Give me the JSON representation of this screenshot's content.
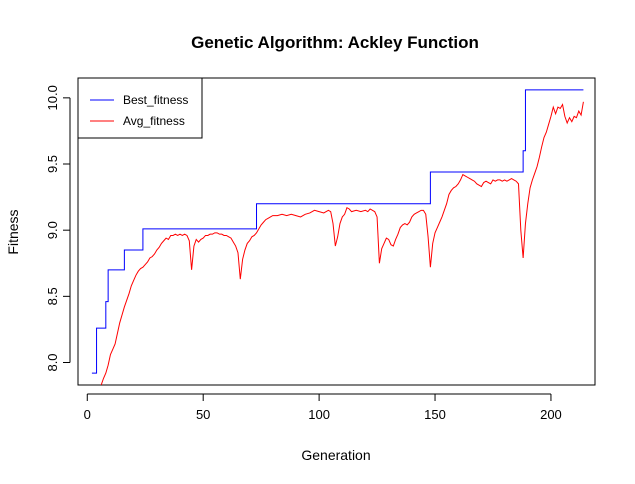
{
  "chart_data": {
    "type": "line",
    "title": "Genetic Algorithm: Ackley Function",
    "xlabel": "Generation",
    "ylabel": "Fitness",
    "xlim": [
      -4,
      219
    ],
    "ylim": [
      7.83,
      10.15
    ],
    "x_ticks": [
      0,
      50,
      100,
      150,
      200
    ],
    "y_ticks": [
      8.0,
      8.5,
      9.0,
      9.5,
      10.0
    ],
    "x_tick_labels": [
      "0",
      "50",
      "100",
      "150",
      "200"
    ],
    "y_tick_labels": [
      "8.0",
      "8.5",
      "9.0",
      "9.5",
      "10.0"
    ],
    "grid": false,
    "legend_position": "top-left",
    "series": [
      {
        "name": "Best_fitness",
        "color": "#0000ff",
        "step": true,
        "points": [
          [
            2,
            7.92
          ],
          [
            4,
            7.92
          ],
          [
            4,
            8.26
          ],
          [
            8,
            8.26
          ],
          [
            8,
            8.46
          ],
          [
            9,
            8.46
          ],
          [
            9,
            8.7
          ],
          [
            16,
            8.7
          ],
          [
            16,
            8.85
          ],
          [
            24,
            8.85
          ],
          [
            24,
            9.01
          ],
          [
            73,
            9.01
          ],
          [
            73,
            9.2
          ],
          [
            148,
            9.2
          ],
          [
            148,
            9.44
          ],
          [
            188,
            9.44
          ],
          [
            188,
            9.6
          ],
          [
            189,
            9.6
          ],
          [
            189,
            10.06
          ],
          [
            214,
            10.06
          ]
        ]
      },
      {
        "name": "Avg_fitness",
        "color": "#ff0000",
        "step": false,
        "points": [
          [
            6,
            7.83
          ],
          [
            7,
            7.88
          ],
          [
            8,
            7.92
          ],
          [
            9,
            7.98
          ],
          [
            10,
            8.06
          ],
          [
            11,
            8.1
          ],
          [
            12,
            8.14
          ],
          [
            13,
            8.22
          ],
          [
            14,
            8.3
          ],
          [
            15,
            8.36
          ],
          [
            16,
            8.42
          ],
          [
            17,
            8.47
          ],
          [
            18,
            8.52
          ],
          [
            19,
            8.58
          ],
          [
            20,
            8.62
          ],
          [
            21,
            8.66
          ],
          [
            22,
            8.69
          ],
          [
            23,
            8.71
          ],
          [
            24,
            8.72
          ],
          [
            25,
            8.74
          ],
          [
            26,
            8.76
          ],
          [
            27,
            8.79
          ],
          [
            28,
            8.8
          ],
          [
            29,
            8.82
          ],
          [
            30,
            8.85
          ],
          [
            31,
            8.87
          ],
          [
            32,
            8.9
          ],
          [
            33,
            8.92
          ],
          [
            34,
            8.94
          ],
          [
            35,
            8.93
          ],
          [
            36,
            8.96
          ],
          [
            37,
            8.96
          ],
          [
            38,
            8.97
          ],
          [
            39,
            8.96
          ],
          [
            40,
            8.97
          ],
          [
            41,
            8.96
          ],
          [
            42,
            8.97
          ],
          [
            43,
            8.96
          ],
          [
            44,
            8.92
          ],
          [
            45,
            8.7
          ],
          [
            46,
            8.88
          ],
          [
            47,
            8.93
          ],
          [
            48,
            8.91
          ],
          [
            49,
            8.93
          ],
          [
            50,
            8.94
          ],
          [
            51,
            8.96
          ],
          [
            52,
            8.96
          ],
          [
            53,
            8.97
          ],
          [
            54,
            8.97
          ],
          [
            55,
            8.98
          ],
          [
            56,
            8.98
          ],
          [
            57,
            8.97
          ],
          [
            58,
            8.97
          ],
          [
            59,
            8.96
          ],
          [
            60,
            8.96
          ],
          [
            61,
            8.95
          ],
          [
            62,
            8.94
          ],
          [
            63,
            8.91
          ],
          [
            64,
            8.88
          ],
          [
            65,
            8.83
          ],
          [
            66,
            8.63
          ],
          [
            67,
            8.78
          ],
          [
            68,
            8.85
          ],
          [
            69,
            8.9
          ],
          [
            70,
            8.92
          ],
          [
            71,
            8.95
          ],
          [
            72,
            8.96
          ],
          [
            73,
            8.98
          ],
          [
            74,
            9.01
          ],
          [
            75,
            9.04
          ],
          [
            76,
            9.06
          ],
          [
            77,
            9.08
          ],
          [
            78,
            9.09
          ],
          [
            79,
            9.1
          ],
          [
            80,
            9.11
          ],
          [
            82,
            9.11
          ],
          [
            84,
            9.12
          ],
          [
            86,
            9.11
          ],
          [
            88,
            9.12
          ],
          [
            90,
            9.11
          ],
          [
            92,
            9.1
          ],
          [
            94,
            9.12
          ],
          [
            96,
            9.13
          ],
          [
            98,
            9.15
          ],
          [
            100,
            9.14
          ],
          [
            102,
            9.13
          ],
          [
            104,
            9.15
          ],
          [
            105,
            9.14
          ],
          [
            106,
            9.05
          ],
          [
            107,
            8.88
          ],
          [
            108,
            8.95
          ],
          [
            109,
            9.05
          ],
          [
            110,
            9.1
          ],
          [
            111,
            9.12
          ],
          [
            112,
            9.17
          ],
          [
            113,
            9.16
          ],
          [
            114,
            9.14
          ],
          [
            116,
            9.15
          ],
          [
            118,
            9.14
          ],
          [
            120,
            9.15
          ],
          [
            121,
            9.14
          ],
          [
            122,
            9.16
          ],
          [
            123,
            9.15
          ],
          [
            124,
            9.14
          ],
          [
            125,
            9.1
          ],
          [
            126,
            8.75
          ],
          [
            127,
            8.86
          ],
          [
            128,
            8.9
          ],
          [
            129,
            8.94
          ],
          [
            130,
            8.93
          ],
          [
            131,
            8.89
          ],
          [
            132,
            8.88
          ],
          [
            133,
            8.93
          ],
          [
            134,
            8.97
          ],
          [
            135,
            9.02
          ],
          [
            136,
            9.04
          ],
          [
            137,
            9.05
          ],
          [
            138,
            9.04
          ],
          [
            139,
            9.06
          ],
          [
            140,
            9.1
          ],
          [
            141,
            9.12
          ],
          [
            142,
            9.13
          ],
          [
            143,
            9.14
          ],
          [
            144,
            9.15
          ],
          [
            145,
            9.15
          ],
          [
            146,
            9.12
          ],
          [
            147,
            8.95
          ],
          [
            148,
            8.72
          ],
          [
            149,
            8.9
          ],
          [
            150,
            8.98
          ],
          [
            151,
            9.02
          ],
          [
            152,
            9.06
          ],
          [
            153,
            9.1
          ],
          [
            154,
            9.15
          ],
          [
            155,
            9.2
          ],
          [
            156,
            9.27
          ],
          [
            157,
            9.3
          ],
          [
            158,
            9.32
          ],
          [
            159,
            9.33
          ],
          [
            160,
            9.35
          ],
          [
            161,
            9.38
          ],
          [
            162,
            9.42
          ],
          [
            163,
            9.41
          ],
          [
            164,
            9.4
          ],
          [
            165,
            9.39
          ],
          [
            166,
            9.38
          ],
          [
            167,
            9.37
          ],
          [
            168,
            9.35
          ],
          [
            169,
            9.34
          ],
          [
            170,
            9.33
          ],
          [
            171,
            9.36
          ],
          [
            172,
            9.37
          ],
          [
            173,
            9.36
          ],
          [
            174,
            9.35
          ],
          [
            175,
            9.38
          ],
          [
            176,
            9.37
          ],
          [
            177,
            9.38
          ],
          [
            178,
            9.38
          ],
          [
            179,
            9.37
          ],
          [
            180,
            9.38
          ],
          [
            181,
            9.37
          ],
          [
            182,
            9.38
          ],
          [
            183,
            9.39
          ],
          [
            184,
            9.38
          ],
          [
            185,
            9.37
          ],
          [
            186,
            9.35
          ],
          [
            187,
            9.0
          ],
          [
            188,
            8.79
          ],
          [
            189,
            9.05
          ],
          [
            190,
            9.2
          ],
          [
            191,
            9.32
          ],
          [
            192,
            9.38
          ],
          [
            193,
            9.43
          ],
          [
            194,
            9.48
          ],
          [
            195,
            9.55
          ],
          [
            196,
            9.63
          ],
          [
            197,
            9.7
          ],
          [
            198,
            9.74
          ],
          [
            199,
            9.8
          ],
          [
            200,
            9.86
          ],
          [
            201,
            9.93
          ],
          [
            202,
            9.88
          ],
          [
            203,
            9.93
          ],
          [
            204,
            9.92
          ],
          [
            205,
            9.95
          ],
          [
            206,
            9.86
          ],
          [
            207,
            9.81
          ],
          [
            208,
            9.85
          ],
          [
            209,
            9.82
          ],
          [
            210,
            9.86
          ],
          [
            211,
            9.85
          ],
          [
            212,
            9.9
          ],
          [
            213,
            9.87
          ],
          [
            214,
            9.97
          ]
        ]
      }
    ]
  }
}
